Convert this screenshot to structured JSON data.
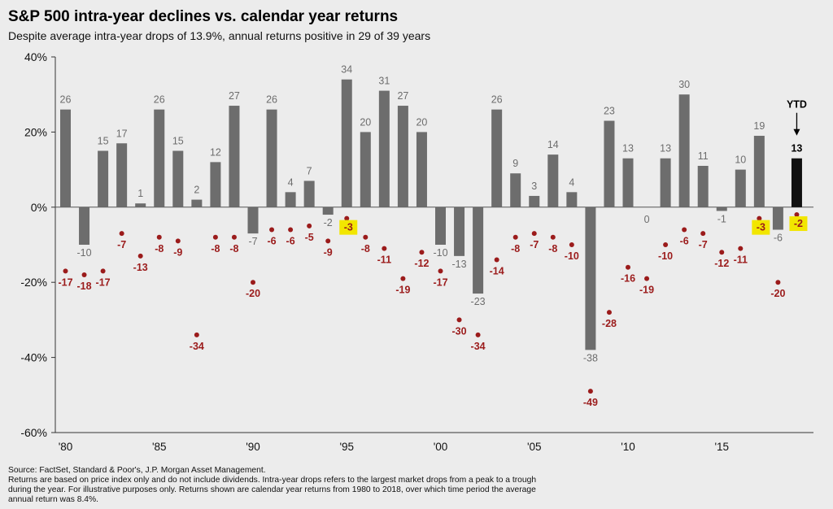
{
  "title": "S&P 500 intra-year declines vs. calendar year returns",
  "subtitle": "Despite average intra-year drops of 13.9%, annual returns positive in 29 of 39 years",
  "footnote": {
    "source": "Source: FactSet, Standard & Poor's, J.P. Morgan Asset Management.",
    "line1": "Returns are based on price index only and do not include dividends. Intra-year drops refers to the largest market drops from a peak to a trough",
    "line2": "during the year. For illustrative purposes only. Returns shown are calendar year returns from 1980 to 2018, over which time period the average",
    "line3": "annual return was 8.4%."
  },
  "chart_data": {
    "type": "bar",
    "ylim": [
      -60,
      40
    ],
    "yticks": [
      40,
      20,
      0,
      -20,
      -40,
      -60
    ],
    "ytick_labels": [
      "40%",
      "20%",
      "0%",
      "-20%",
      "-40%",
      "-60%"
    ],
    "x_tick_labels": [
      {
        "year": 1980,
        "label": "'80"
      },
      {
        "year": 1985,
        "label": "'85"
      },
      {
        "year": 1990,
        "label": "'90"
      },
      {
        "year": 1995,
        "label": "'95"
      },
      {
        "year": 2000,
        "label": "'00"
      },
      {
        "year": 2005,
        "label": "'05"
      },
      {
        "year": 2010,
        "label": "'10"
      },
      {
        "year": 2015,
        "label": "'15"
      }
    ],
    "years": [
      1980,
      1981,
      1982,
      1983,
      1984,
      1985,
      1986,
      1987,
      1988,
      1989,
      1990,
      1991,
      1992,
      1993,
      1994,
      1995,
      1996,
      1997,
      1998,
      1999,
      2000,
      2001,
      2002,
      2003,
      2004,
      2005,
      2006,
      2007,
      2008,
      2009,
      2010,
      2011,
      2012,
      2013,
      2014,
      2015,
      2016,
      2017,
      2018,
      2019
    ],
    "series": [
      {
        "values": [
          26,
          -10,
          15,
          17,
          1,
          26,
          15,
          2,
          12,
          27,
          -7,
          26,
          4,
          7,
          -2,
          34,
          20,
          31,
          27,
          20,
          -10,
          -13,
          -23,
          26,
          9,
          3,
          14,
          4,
          -38,
          23,
          13,
          0,
          13,
          30,
          11,
          -1,
          10,
          19,
          -6,
          13
        ]
      },
      {
        "values": [
          -17,
          -18,
          -17,
          -7,
          -13,
          -8,
          -9,
          -34,
          -8,
          -8,
          -20,
          -6,
          -6,
          -5,
          -9,
          -3,
          -8,
          -11,
          -19,
          -12,
          -17,
          -30,
          -34,
          -14,
          -8,
          -7,
          -8,
          -10,
          -49,
          -28,
          -16,
          -19,
          -10,
          -6,
          -7,
          -12,
          -11,
          -3,
          -20,
          -2
        ]
      }
    ],
    "highlighted_declines": [
      1995,
      2017,
      2019
    ],
    "ytd_year": 2019,
    "ytd_label": "YTD",
    "colors": {
      "bar": "#6d6d6d",
      "bar_ytd": "#111111",
      "decline_dot": "#9b1b1b",
      "decline_label": "#9b1b1b",
      "highlight": "#f2e600",
      "axis": "#333333",
      "bar_label": "#6d6d6d"
    }
  }
}
